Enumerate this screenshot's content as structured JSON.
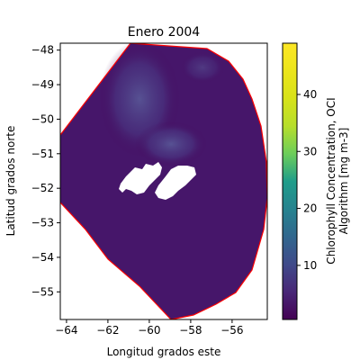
{
  "chart_data": {
    "type": "heatmap",
    "title": "Enero 2004",
    "xlabel": "Longitud grados este",
    "ylabel": "Latitud grados norte",
    "xlim": [
      -64.3,
      -54.3
    ],
    "ylim": [
      -55.8,
      -47.8
    ],
    "xticks": [
      -64,
      -62,
      -60,
      -58,
      -56
    ],
    "yticks": [
      -48,
      -49,
      -50,
      -51,
      -52,
      -53,
      -54,
      -55
    ],
    "colorbar": {
      "label_line1": "Chlorophyll Concentration, OCI",
      "label_line2": "Algorithm [mg m-3]",
      "colormap": "viridis",
      "range": [
        0.5,
        49
      ],
      "ticks": [
        10,
        20,
        30,
        40
      ]
    },
    "data_boundary_color": "#ff0000",
    "no_data_regions": "Islas Malvinas (blanco, aprox. -61.2 a -57.8 lon, -51.2 a -52.4 lat)",
    "background_value_mg_m3": 1.5,
    "high_value_plume_mg_m3": 4
  }
}
